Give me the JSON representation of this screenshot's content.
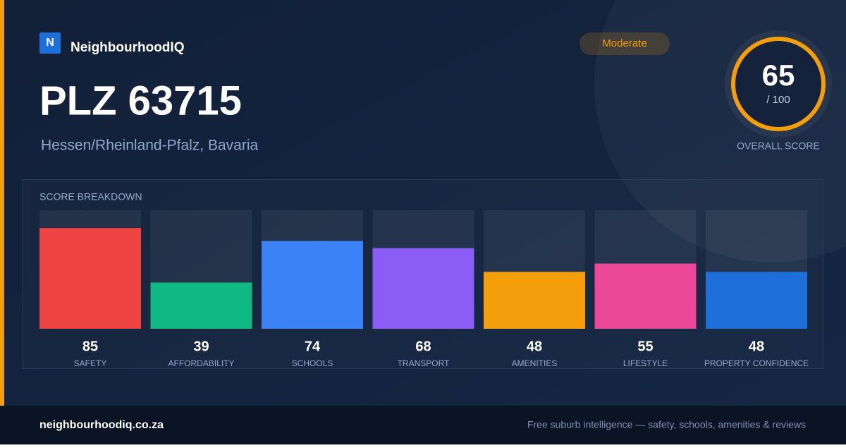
{
  "brand": {
    "logo": "N",
    "name": "NeighbourhoodIQ"
  },
  "badge": "Moderate",
  "title": "PLZ 63715",
  "subtitle": "Hessen/Rheinland-Pfalz, Bavaria",
  "score": {
    "value": 65,
    "max_label": "/ 100",
    "caption": "OVERALL SCORE"
  },
  "chart_data": {
    "type": "bar",
    "title": "SCORE BREAKDOWN",
    "categories": [
      "SAFETY",
      "AFFORDABILITY",
      "SCHOOLS",
      "TRANSPORT",
      "AMENITIES",
      "LIFESTYLE",
      "PROPERTY CONFIDENCE"
    ],
    "values": [
      85,
      39,
      74,
      68,
      48,
      55,
      48
    ],
    "colors": [
      "#ef4444",
      "#10b981",
      "#3b82f6",
      "#8b5cf6",
      "#f59e0b",
      "#ec4899",
      "#1e6fd9"
    ],
    "ylim": [
      0,
      100
    ]
  },
  "footer": {
    "site": "neighbourhoodiq.co.za",
    "tagline": "Free suburb intelligence — safety, schools, amenities & reviews"
  }
}
